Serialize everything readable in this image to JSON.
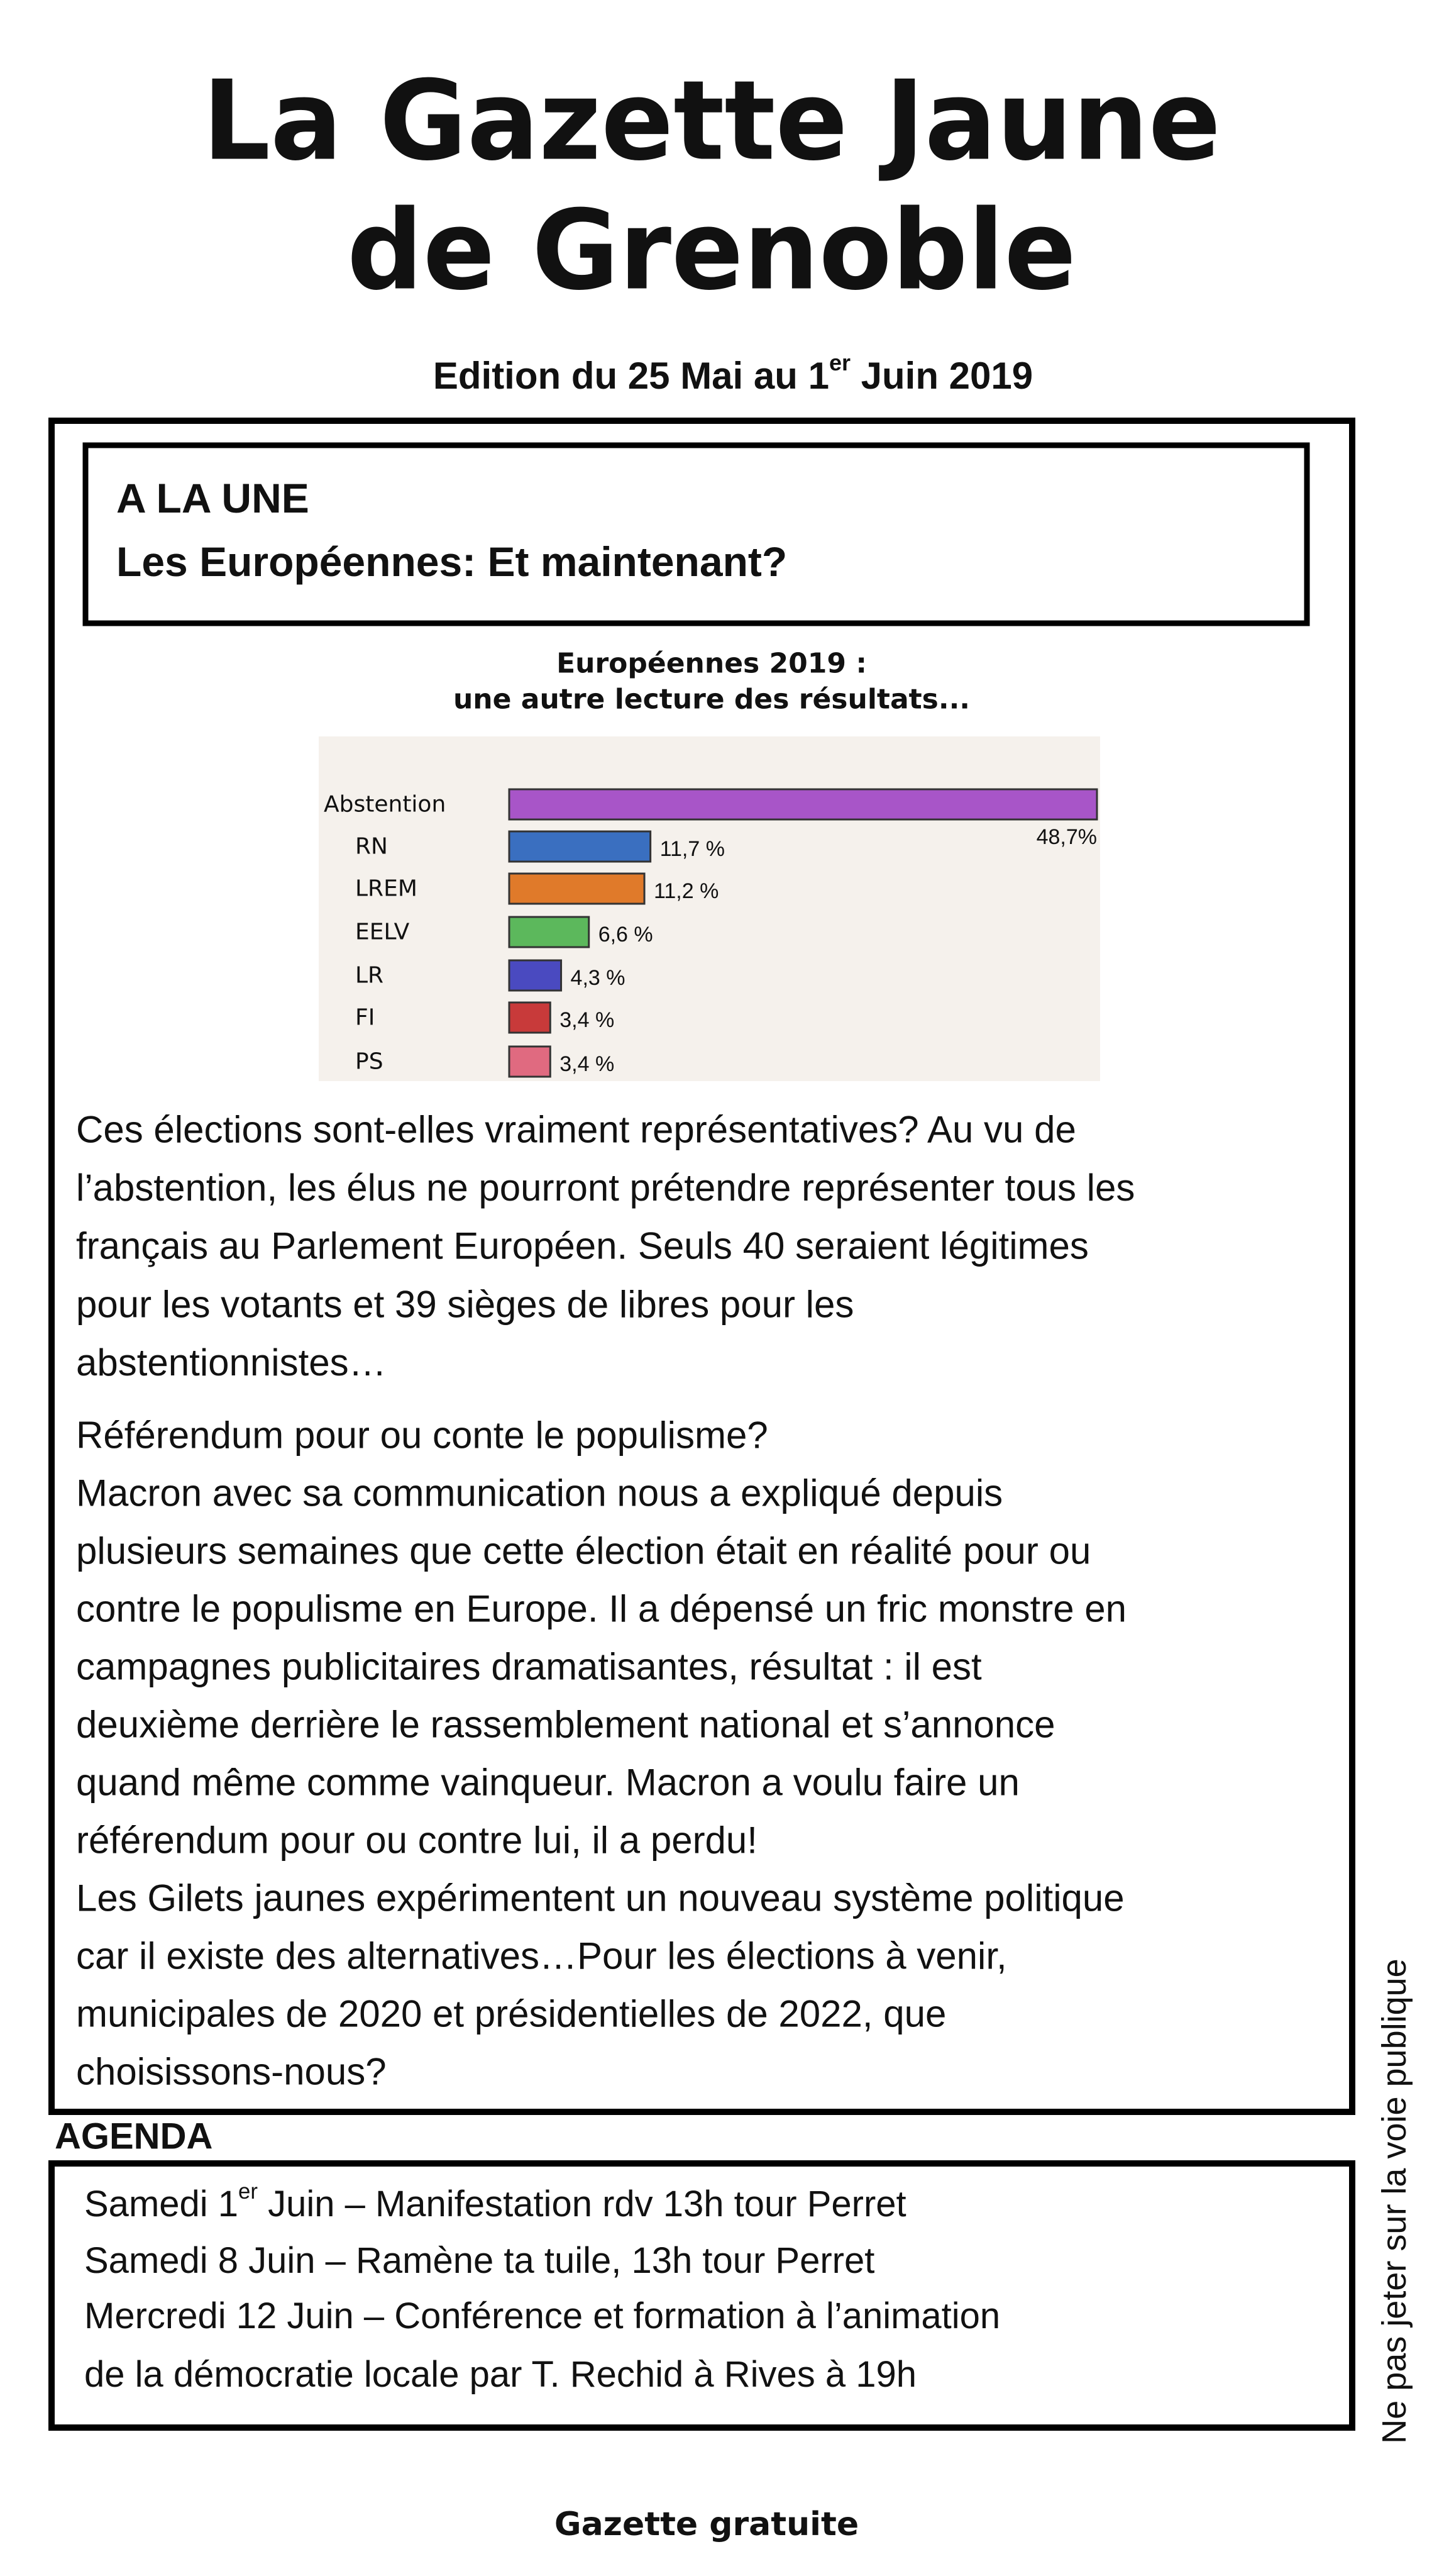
{
  "header": {
    "title_lines": [
      "La Gazette Jaune",
      "de Grenoble"
    ],
    "edition": [
      "Edition du 25 Mai au 1",
      "er",
      " Juin 2019"
    ]
  },
  "une": {
    "label": "A LA UNE",
    "headline": "Les Européennes: Et maintenant?"
  },
  "chart": {
    "title_lines": [
      "Européennes 2019 :",
      "une autre lecture des résultats..."
    ],
    "categories": [
      "Abstention",
      "RN",
      "LREM",
      "EELV",
      "LR",
      "FI",
      "PS"
    ],
    "values": [
      48.7,
      11.7,
      11.2,
      6.6,
      4.3,
      3.4,
      3.4
    ],
    "value_labels": [
      "48,7%",
      "11,7 %",
      "11,2 %",
      "6,6 %",
      "4,3 %",
      "3,4 %",
      "3,4 %"
    ],
    "colors": [
      "#a855c8",
      "#3a6fc0",
      "#e07a2a",
      "#5cb85c",
      "#4a4ac0",
      "#c83a3a",
      "#e06a80"
    ]
  },
  "article": {
    "paragraphs": [
      [
        "Ces élections sont-elles vraiment représentatives?  Au vu de",
        "l’abstention, les élus ne pourront prétendre représenter tous les",
        "français au Parlement Européen. Seuls 40 seraient légitimes",
        "pour les votants et 39 sièges de libres pour les",
        "abstentionnistes…"
      ],
      [
        "Référendum pour ou conte le populisme?",
        "Macron avec sa communication nous a expliqué depuis",
        "plusieurs semaines que cette élection était en réalité pour ou",
        "contre le populisme en Europe. Il a dépensé un fric monstre en",
        "campagnes publicitaires dramatisantes, résultat : il est",
        "deuxième derrière le rassemblement national et s’annonce",
        "quand même comme vainqueur. Macron a voulu faire un",
        "référendum pour ou contre lui, il a perdu!",
        "Les Gilets jaunes expérimentent un nouveau système politique",
        "car  il existe des alternatives…Pour les élections à venir,",
        "municipales de 2020 et présidentielles de 2022, que",
        "choisissons-nous?"
      ]
    ]
  },
  "agenda": {
    "title": "AGENDA",
    "items": [
      [
        "Samedi 1",
        "er",
        " Juin – Manifestation rdv 13h tour Perret"
      ],
      [
        "Samedi 8 Juin – Ramène ta tuile, 13h tour Perret"
      ],
      [
        "Mercredi 12 Juin – Conférence et formation à l’animation"
      ],
      [
        "de la démocratie locale par T. Rechid à Rives à 19h"
      ]
    ]
  },
  "footer": {
    "label": "Gazette gratuite",
    "side_note": "Ne pas jeter sur la voie publique"
  }
}
